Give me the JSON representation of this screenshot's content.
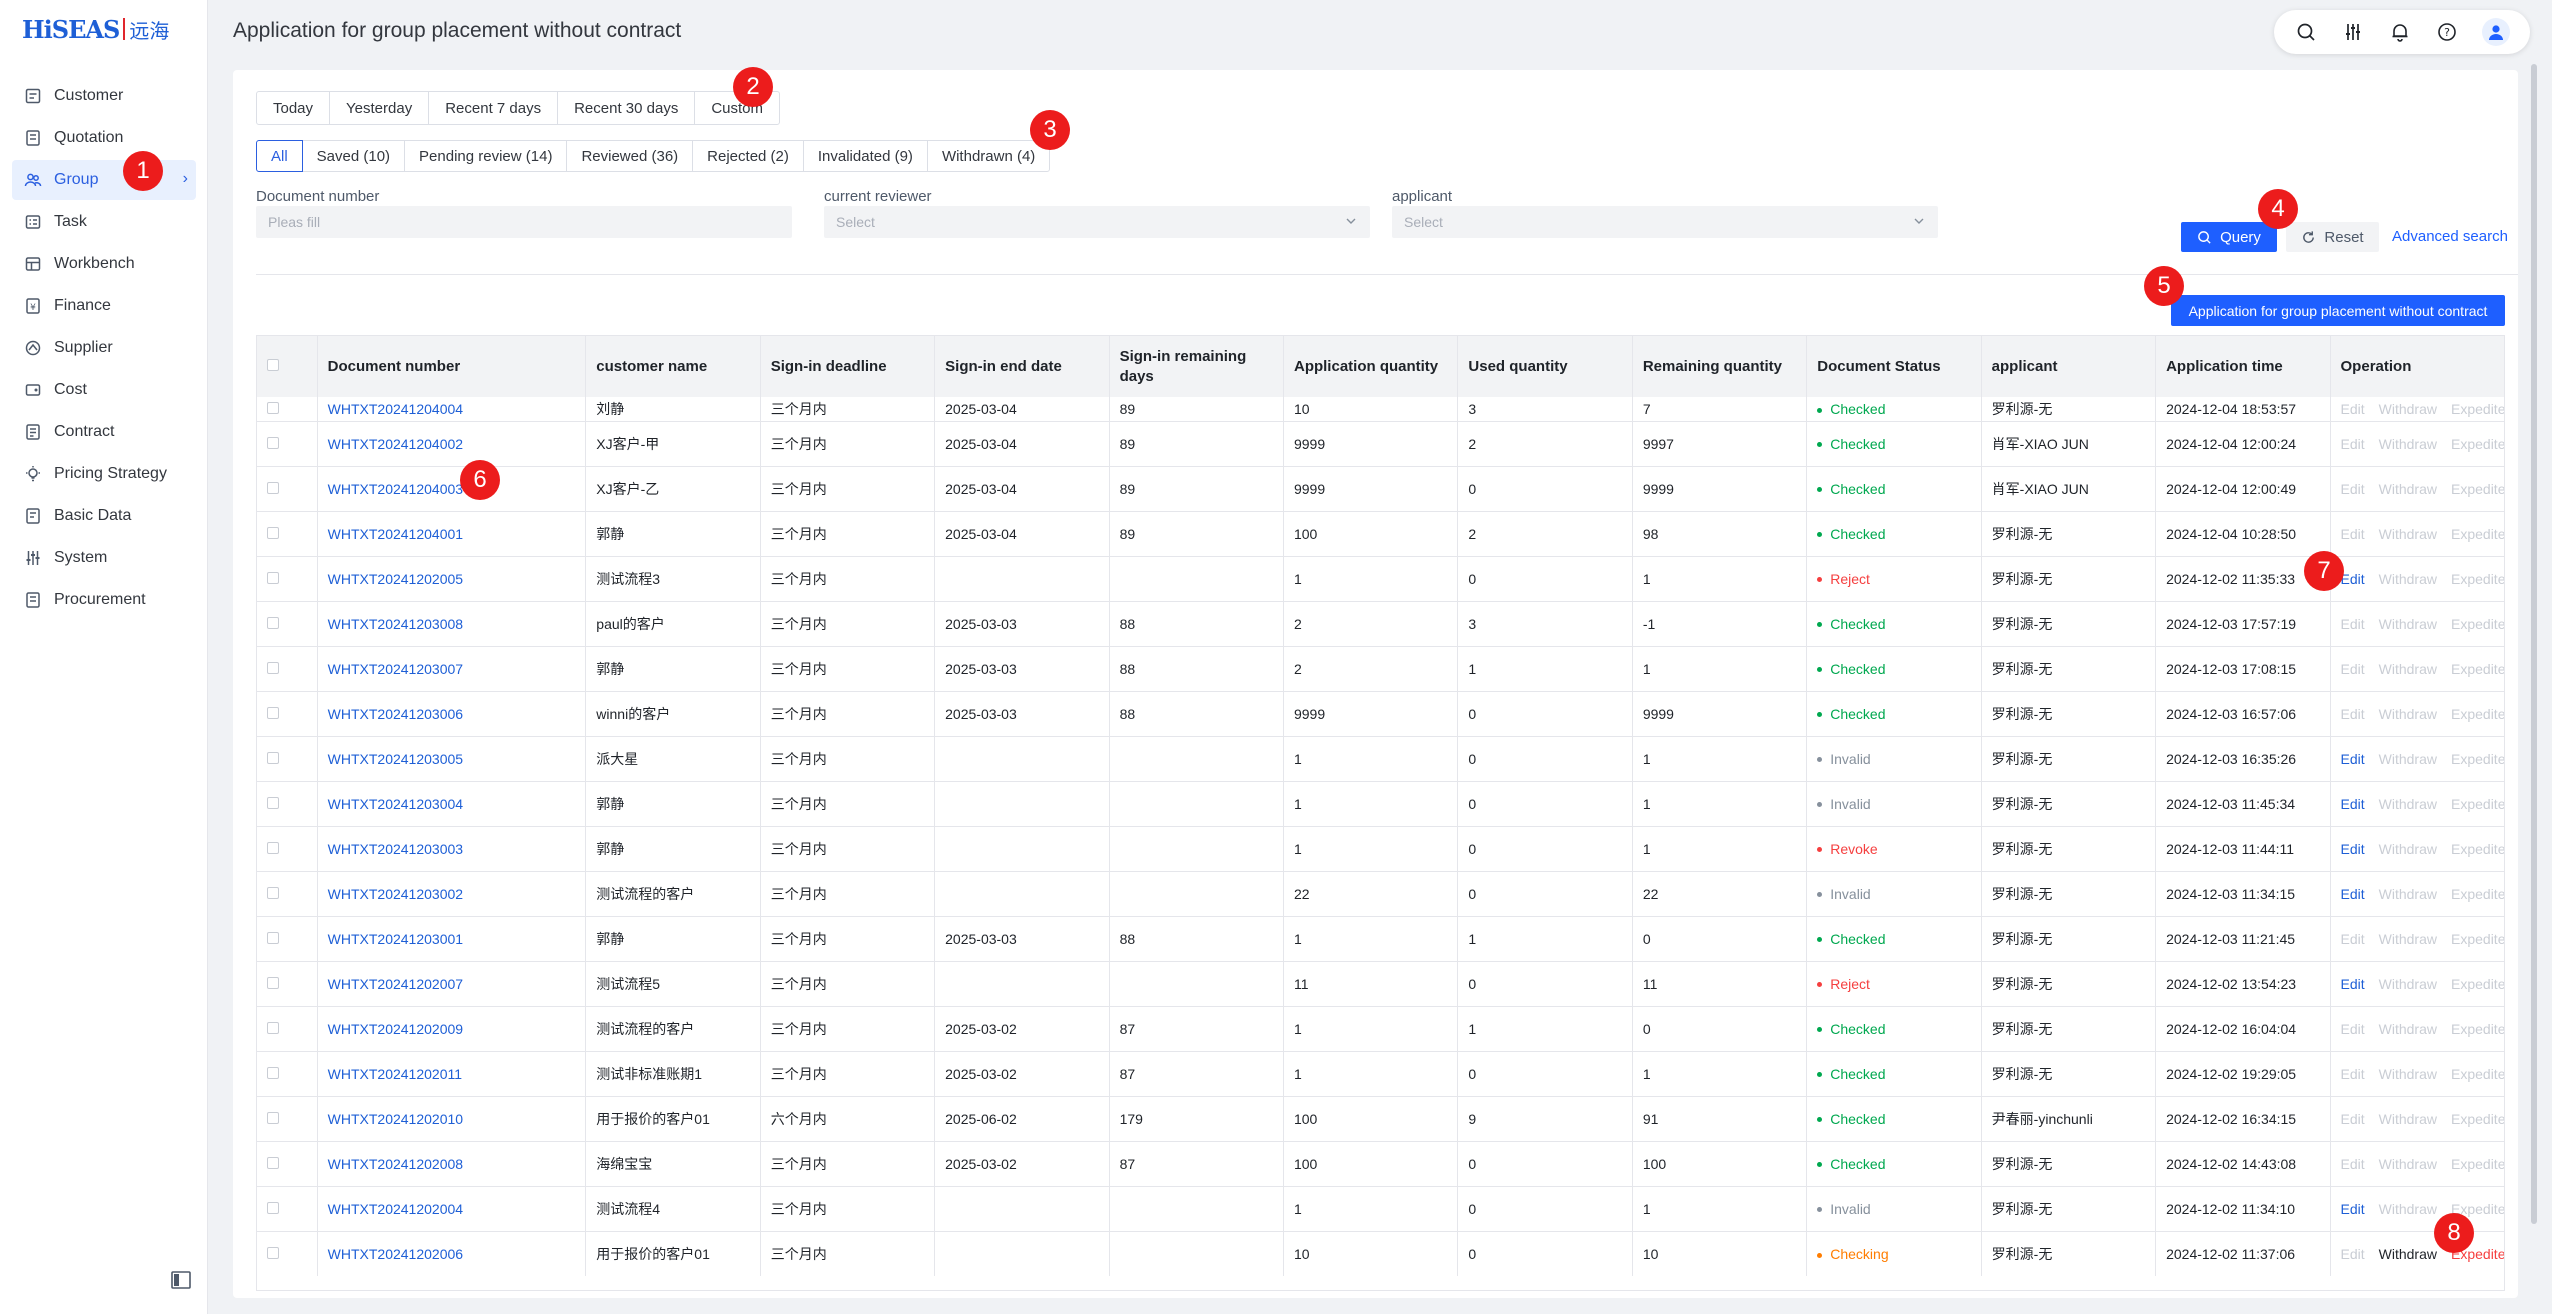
{
  "app": {
    "logo_text": "HiSEAS",
    "logo_cn": "远海",
    "page_title": "Application for group placement without contract"
  },
  "sidebar": {
    "items": [
      {
        "label": "Customer",
        "icon": "customer-icon"
      },
      {
        "label": "Quotation",
        "icon": "quotation-icon"
      },
      {
        "label": "Group",
        "icon": "group-icon",
        "active": true
      },
      {
        "label": "Task",
        "icon": "task-icon"
      },
      {
        "label": "Workbench",
        "icon": "workbench-icon"
      },
      {
        "label": "Finance",
        "icon": "finance-icon"
      },
      {
        "label": "Supplier",
        "icon": "supplier-icon"
      },
      {
        "label": "Cost",
        "icon": "cost-icon"
      },
      {
        "label": "Contract",
        "icon": "contract-icon"
      },
      {
        "label": "Pricing Strategy",
        "icon": "pricing-icon"
      },
      {
        "label": "Basic Data",
        "icon": "basic-data-icon"
      },
      {
        "label": "System",
        "icon": "system-icon"
      },
      {
        "label": "Procurement",
        "icon": "procurement-icon"
      }
    ]
  },
  "date_filters": [
    "Today",
    "Yesterday",
    "Recent 7 days",
    "Recent 30 days",
    "Custom"
  ],
  "status_tabs": [
    "All",
    "Saved (10)",
    "Pending review (14)",
    "Reviewed (36)",
    "Rejected (2)",
    "Invalidated (9)",
    "Withdrawn (4)"
  ],
  "filters": {
    "doc_number_label": "Document number",
    "doc_number_placeholder": "Pleas fill",
    "reviewer_label": "current reviewer",
    "reviewer_placeholder": "Select",
    "applicant_label": "applicant",
    "applicant_placeholder": "Select"
  },
  "actions": {
    "query": "Query",
    "reset": "Reset",
    "advanced": "Advanced search",
    "apply": "Application for group placement without contract"
  },
  "table": {
    "headers": [
      "Document number",
      "customer name",
      "Sign-in deadline",
      "Sign-in end date",
      "Sign-in remaining days",
      "Application quantity",
      "Used quantity",
      "Remaining quantity",
      "Document Status",
      "applicant",
      "Application time",
      "Operation"
    ],
    "op_labels": {
      "edit": "Edit",
      "withdraw": "Withdraw",
      "expedite": "Expedite"
    },
    "rows": [
      {
        "doc": "WHTXT20241204004",
        "customer": "刘静",
        "deadline": "三个月内",
        "end": "2025-03-04",
        "days": "89",
        "app_qty": "10",
        "used": "3",
        "remain": "7",
        "status": "Checked",
        "applicant": "罗利源-无",
        "time": "2024-12-04 18:53:57",
        "ops": [
          "dis",
          "dis",
          "dis"
        ]
      },
      {
        "doc": "WHTXT20241204002",
        "customer": "XJ客户-甲",
        "deadline": "三个月内",
        "end": "2025-03-04",
        "days": "89",
        "app_qty": "9999",
        "used": "2",
        "remain": "9997",
        "status": "Checked",
        "applicant": "肖军-XIAO JUN",
        "time": "2024-12-04 12:00:24",
        "ops": [
          "dis",
          "dis",
          "dis"
        ]
      },
      {
        "doc": "WHTXT20241204003",
        "customer": "XJ客户-乙",
        "deadline": "三个月内",
        "end": "2025-03-04",
        "days": "89",
        "app_qty": "9999",
        "used": "0",
        "remain": "9999",
        "status": "Checked",
        "applicant": "肖军-XIAO JUN",
        "time": "2024-12-04 12:00:49",
        "ops": [
          "dis",
          "dis",
          "dis"
        ]
      },
      {
        "doc": "WHTXT20241204001",
        "customer": "郭静",
        "deadline": "三个月内",
        "end": "2025-03-04",
        "days": "89",
        "app_qty": "100",
        "used": "2",
        "remain": "98",
        "status": "Checked",
        "applicant": "罗利源-无",
        "time": "2024-12-04 10:28:50",
        "ops": [
          "dis",
          "dis",
          "dis"
        ]
      },
      {
        "doc": "WHTXT20241202005",
        "customer": "测试流程3",
        "deadline": "三个月内",
        "end": "",
        "days": "",
        "app_qty": "1",
        "used": "0",
        "remain": "1",
        "status": "Reject",
        "applicant": "罗利源-无",
        "time": "2024-12-02 11:35:33",
        "ops": [
          "edit",
          "dis",
          "dis"
        ]
      },
      {
        "doc": "WHTXT20241203008",
        "customer": "paul的客户",
        "deadline": "三个月内",
        "end": "2025-03-03",
        "days": "88",
        "app_qty": "2",
        "used": "3",
        "remain": "-1",
        "status": "Checked",
        "applicant": "罗利源-无",
        "time": "2024-12-03 17:57:19",
        "ops": [
          "dis",
          "dis",
          "dis"
        ]
      },
      {
        "doc": "WHTXT20241203007",
        "customer": "郭静",
        "deadline": "三个月内",
        "end": "2025-03-03",
        "days": "88",
        "app_qty": "2",
        "used": "1",
        "remain": "1",
        "status": "Checked",
        "applicant": "罗利源-无",
        "time": "2024-12-03 17:08:15",
        "ops": [
          "dis",
          "dis",
          "dis"
        ]
      },
      {
        "doc": "WHTXT20241203006",
        "customer": "winni的客户",
        "deadline": "三个月内",
        "end": "2025-03-03",
        "days": "88",
        "app_qty": "9999",
        "used": "0",
        "remain": "9999",
        "status": "Checked",
        "applicant": "罗利源-无",
        "time": "2024-12-03 16:57:06",
        "ops": [
          "dis",
          "dis",
          "dis"
        ]
      },
      {
        "doc": "WHTXT20241203005",
        "customer": "派大星",
        "deadline": "三个月内",
        "end": "",
        "days": "",
        "app_qty": "1",
        "used": "0",
        "remain": "1",
        "status": "Invalid",
        "applicant": "罗利源-无",
        "time": "2024-12-03 16:35:26",
        "ops": [
          "edit",
          "dis",
          "dis"
        ]
      },
      {
        "doc": "WHTXT20241203004",
        "customer": "郭静",
        "deadline": "三个月内",
        "end": "",
        "days": "",
        "app_qty": "1",
        "used": "0",
        "remain": "1",
        "status": "Invalid",
        "applicant": "罗利源-无",
        "time": "2024-12-03 11:45:34",
        "ops": [
          "edit",
          "dis",
          "dis"
        ]
      },
      {
        "doc": "WHTXT20241203003",
        "customer": "郭静",
        "deadline": "三个月内",
        "end": "",
        "days": "",
        "app_qty": "1",
        "used": "0",
        "remain": "1",
        "status": "Revoke",
        "applicant": "罗利源-无",
        "time": "2024-12-03 11:44:11",
        "ops": [
          "edit",
          "dis",
          "dis"
        ]
      },
      {
        "doc": "WHTXT20241203002",
        "customer": "测试流程的客户",
        "deadline": "三个月内",
        "end": "",
        "days": "",
        "app_qty": "22",
        "used": "0",
        "remain": "22",
        "status": "Invalid",
        "applicant": "罗利源-无",
        "time": "2024-12-03 11:34:15",
        "ops": [
          "edit",
          "dis",
          "dis"
        ]
      },
      {
        "doc": "WHTXT20241203001",
        "customer": "郭静",
        "deadline": "三个月内",
        "end": "2025-03-03",
        "days": "88",
        "app_qty": "1",
        "used": "1",
        "remain": "0",
        "status": "Checked",
        "applicant": "罗利源-无",
        "time": "2024-12-03 11:21:45",
        "ops": [
          "dis",
          "dis",
          "dis"
        ]
      },
      {
        "doc": "WHTXT20241202007",
        "customer": "测试流程5",
        "deadline": "三个月内",
        "end": "",
        "days": "",
        "app_qty": "11",
        "used": "0",
        "remain": "11",
        "status": "Reject",
        "applicant": "罗利源-无",
        "time": "2024-12-02 13:54:23",
        "ops": [
          "edit",
          "dis",
          "dis"
        ]
      },
      {
        "doc": "WHTXT20241202009",
        "customer": "测试流程的客户",
        "deadline": "三个月内",
        "end": "2025-03-02",
        "days": "87",
        "app_qty": "1",
        "used": "1",
        "remain": "0",
        "status": "Checked",
        "applicant": "罗利源-无",
        "time": "2024-12-02 16:04:04",
        "ops": [
          "dis",
          "dis",
          "dis"
        ]
      },
      {
        "doc": "WHTXT20241202011",
        "customer": "测试非标准账期1",
        "deadline": "三个月内",
        "end": "2025-03-02",
        "days": "87",
        "app_qty": "1",
        "used": "0",
        "remain": "1",
        "status": "Checked",
        "applicant": "罗利源-无",
        "time": "2024-12-02 19:29:05",
        "ops": [
          "dis",
          "dis",
          "dis"
        ]
      },
      {
        "doc": "WHTXT20241202010",
        "customer": "用于报价的客户01",
        "deadline": "六个月内",
        "end": "2025-06-02",
        "days": "179",
        "app_qty": "100",
        "used": "9",
        "remain": "91",
        "status": "Checked",
        "applicant": "尹春丽-yinchunli",
        "time": "2024-12-02 16:34:15",
        "ops": [
          "dis",
          "dis",
          "dis"
        ]
      },
      {
        "doc": "WHTXT20241202008",
        "customer": "海绵宝宝",
        "deadline": "三个月内",
        "end": "2025-03-02",
        "days": "87",
        "app_qty": "100",
        "used": "0",
        "remain": "100",
        "status": "Checked",
        "applicant": "罗利源-无",
        "time": "2024-12-02 14:43:08",
        "ops": [
          "dis",
          "dis",
          "dis"
        ]
      },
      {
        "doc": "WHTXT20241202004",
        "customer": "测试流程4",
        "deadline": "三个月内",
        "end": "",
        "days": "",
        "app_qty": "1",
        "used": "0",
        "remain": "1",
        "status": "Invalid",
        "applicant": "罗利源-无",
        "time": "2024-12-02 11:34:10",
        "ops": [
          "edit",
          "dis",
          "dis"
        ]
      },
      {
        "doc": "WHTXT20241202006",
        "customer": "用于报价的客户01",
        "deadline": "三个月内",
        "end": "",
        "days": "",
        "app_qty": "10",
        "used": "0",
        "remain": "10",
        "status": "Checking",
        "applicant": "罗利源-无",
        "time": "2024-12-02 11:37:06",
        "ops": [
          "dis",
          "dark",
          "red"
        ]
      }
    ]
  },
  "badges": [
    "1",
    "2",
    "3",
    "4",
    "5",
    "6",
    "7",
    "8"
  ],
  "colors": {
    "accent": "#1e5fff",
    "checked": "#00a84f",
    "reject": "#f53f3f",
    "checking": "#ff7d00",
    "badge": "#ec1c1c"
  }
}
